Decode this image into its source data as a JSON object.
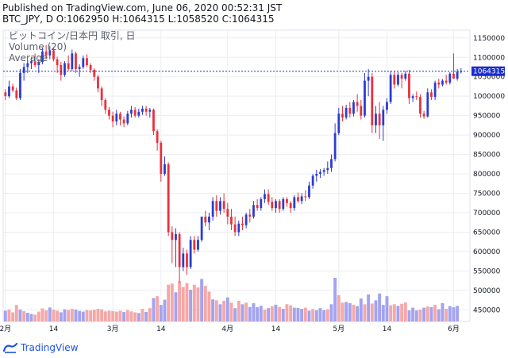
{
  "header": {
    "published": "Published on TradingView.com, June 06, 2020 00:52:31 JST",
    "ohlc": "BTC_JPY, D O:1062950 H:1064315 L:1058520 C:1064315"
  },
  "footer": {
    "brand": "TradingView"
  },
  "colors": {
    "up": "#2c3cd0",
    "down": "#e8313c",
    "vol_up": "#a3a3f0",
    "vol_down": "#f5a8a8",
    "price_line": "#1a2bd0",
    "grid": "#ebedf2"
  },
  "chart_data": {
    "type": "candlestick",
    "title": "ビットコイン/日本円 取引, 日",
    "legend": [
      "Volume (20)",
      "Average"
    ],
    "symbol": "BTC_JPY",
    "interval": "D",
    "last_price": 1064315,
    "last_price_label": "1064315",
    "ylim": [
      420000,
      1170000
    ],
    "y_ticks": [
      450000,
      500000,
      550000,
      600000,
      650000,
      700000,
      750000,
      800000,
      850000,
      900000,
      950000,
      1000000,
      1050000,
      1100000,
      1150000
    ],
    "y_tick_labels": [
      "450000",
      "500000",
      "550000",
      "600000",
      "650000",
      "700000",
      "750000",
      "800000",
      "850000",
      "900000",
      "950000",
      "1000000",
      "1050000",
      "1100000",
      "1150000"
    ],
    "x_ticks": [
      {
        "index": 0,
        "label": "2月"
      },
      {
        "index": 13,
        "label": "14"
      },
      {
        "index": 29,
        "label": "3月"
      },
      {
        "index": 42,
        "label": "14"
      },
      {
        "index": 60,
        "label": "4月"
      },
      {
        "index": 73,
        "label": "14"
      },
      {
        "index": 90,
        "label": "5月"
      },
      {
        "index": 103,
        "label": "14"
      },
      {
        "index": 121,
        "label": "6月"
      }
    ],
    "candles": [
      [
        1010000,
        1018000,
        990000,
        1000000
      ],
      [
        1000000,
        1040000,
        995000,
        1025000
      ],
      [
        1025000,
        1032000,
        1010000,
        1015000
      ],
      [
        1015000,
        1022000,
        990000,
        995000
      ],
      [
        995000,
        1070000,
        990000,
        1060000
      ],
      [
        1060000,
        1085000,
        1040000,
        1075000
      ],
      [
        1075000,
        1092000,
        1060000,
        1085000
      ],
      [
        1085000,
        1100000,
        1070000,
        1090000
      ],
      [
        1090000,
        1110000,
        1075000,
        1080000
      ],
      [
        1080000,
        1095000,
        1060000,
        1088000
      ],
      [
        1088000,
        1125000,
        1082000,
        1115000
      ],
      [
        1115000,
        1132000,
        1095000,
        1105000
      ],
      [
        1105000,
        1130000,
        1095000,
        1118000
      ],
      [
        1118000,
        1125000,
        1090000,
        1095000
      ],
      [
        1095000,
        1102000,
        1060000,
        1080000
      ],
      [
        1080000,
        1088000,
        1040000,
        1055000
      ],
      [
        1055000,
        1090000,
        1050000,
        1085000
      ],
      [
        1085000,
        1105000,
        1065000,
        1070000
      ],
      [
        1070000,
        1120000,
        1065000,
        1110000
      ],
      [
        1110000,
        1115000,
        1060000,
        1070000
      ],
      [
        1070000,
        1082000,
        1050000,
        1075000
      ],
      [
        1075000,
        1105000,
        1070000,
        1098000
      ],
      [
        1098000,
        1108000,
        1075000,
        1080000
      ],
      [
        1080000,
        1085000,
        1060000,
        1068000
      ],
      [
        1068000,
        1072000,
        1040000,
        1050000
      ],
      [
        1050000,
        1055000,
        1010000,
        1020000
      ],
      [
        1020000,
        1025000,
        975000,
        990000
      ],
      [
        990000,
        995000,
        955000,
        965000
      ],
      [
        965000,
        972000,
        940000,
        950000
      ],
      [
        950000,
        960000,
        920000,
        935000
      ],
      [
        935000,
        965000,
        925000,
        955000
      ],
      [
        955000,
        960000,
        925000,
        940000
      ],
      [
        940000,
        948000,
        920000,
        930000
      ],
      [
        930000,
        962000,
        925000,
        955000
      ],
      [
        955000,
        975000,
        945000,
        965000
      ],
      [
        965000,
        972000,
        945000,
        950000
      ],
      [
        950000,
        968000,
        945000,
        960000
      ],
      [
        960000,
        975000,
        952000,
        968000
      ],
      [
        968000,
        975000,
        950000,
        960000
      ],
      [
        960000,
        970000,
        945000,
        965000
      ],
      [
        965000,
        968000,
        900000,
        910000
      ],
      [
        910000,
        915000,
        860000,
        880000
      ],
      [
        880000,
        885000,
        780000,
        800000
      ],
      [
        800000,
        845000,
        795000,
        825000
      ],
      [
        825000,
        830000,
        640000,
        650000
      ],
      [
        650000,
        665000,
        570000,
        630000
      ],
      [
        630000,
        660000,
        560000,
        645000
      ],
      [
        645000,
        650000,
        520000,
        560000
      ],
      [
        560000,
        610000,
        550000,
        595000
      ],
      [
        595000,
        605000,
        540000,
        560000
      ],
      [
        560000,
        640000,
        555000,
        630000
      ],
      [
        630000,
        640000,
        595000,
        605000
      ],
      [
        605000,
        640000,
        600000,
        630000
      ],
      [
        630000,
        690000,
        625000,
        690000
      ],
      [
        690000,
        705000,
        665000,
        675000
      ],
      [
        675000,
        700000,
        655000,
        690000
      ],
      [
        690000,
        740000,
        680000,
        730000
      ],
      [
        730000,
        745000,
        690000,
        705000
      ],
      [
        705000,
        740000,
        695000,
        730000
      ],
      [
        730000,
        750000,
        700000,
        710000
      ],
      [
        710000,
        725000,
        670000,
        690000
      ],
      [
        690000,
        710000,
        655000,
        670000
      ],
      [
        670000,
        690000,
        640000,
        650000
      ],
      [
        650000,
        680000,
        640000,
        672000
      ],
      [
        672000,
        690000,
        655000,
        668000
      ],
      [
        668000,
        700000,
        660000,
        695000
      ],
      [
        695000,
        710000,
        675000,
        690000
      ],
      [
        690000,
        730000,
        685000,
        720000
      ],
      [
        720000,
        735000,
        705000,
        712000
      ],
      [
        712000,
        740000,
        705000,
        735000
      ],
      [
        735000,
        760000,
        725000,
        748000
      ],
      [
        748000,
        760000,
        720000,
        728000
      ],
      [
        728000,
        740000,
        705000,
        712000
      ],
      [
        712000,
        735000,
        700000,
        730000
      ],
      [
        730000,
        735000,
        700000,
        710000
      ],
      [
        710000,
        740000,
        705000,
        735000
      ],
      [
        735000,
        740000,
        715000,
        725000
      ],
      [
        725000,
        730000,
        700000,
        712000
      ],
      [
        712000,
        745000,
        705000,
        740000
      ],
      [
        740000,
        752000,
        725000,
        730000
      ],
      [
        730000,
        750000,
        722000,
        742000
      ],
      [
        742000,
        758000,
        730000,
        740000
      ],
      [
        740000,
        780000,
        735000,
        770000
      ],
      [
        770000,
        800000,
        762000,
        795000
      ],
      [
        795000,
        810000,
        780000,
        800000
      ],
      [
        800000,
        812000,
        790000,
        805000
      ],
      [
        805000,
        815000,
        795000,
        810000
      ],
      [
        810000,
        832000,
        800000,
        815000
      ],
      [
        815000,
        850000,
        805000,
        838000
      ],
      [
        838000,
        930000,
        832000,
        905000
      ],
      [
        905000,
        970000,
        900000,
        955000
      ],
      [
        955000,
        975000,
        935000,
        945000
      ],
      [
        945000,
        978000,
        940000,
        970000
      ],
      [
        970000,
        985000,
        945000,
        955000
      ],
      [
        955000,
        990000,
        948000,
        985000
      ],
      [
        985000,
        1005000,
        960000,
        975000
      ],
      [
        975000,
        990000,
        940000,
        950000
      ],
      [
        950000,
        1060000,
        945000,
        1040000
      ],
      [
        1040000,
        1070000,
        1000000,
        1050000
      ],
      [
        1050000,
        1060000,
        905000,
        925000
      ],
      [
        925000,
        975000,
        905000,
        955000
      ],
      [
        955000,
        985000,
        890000,
        925000
      ],
      [
        925000,
        975000,
        885000,
        965000
      ],
      [
        965000,
        995000,
        955000,
        985000
      ],
      [
        985000,
        1065000,
        980000,
        1055000
      ],
      [
        1055000,
        1065000,
        1020000,
        1030000
      ],
      [
        1030000,
        1062000,
        1025000,
        1055000
      ],
      [
        1055000,
        1060000,
        1020000,
        1045000
      ],
      [
        1045000,
        1065000,
        1040000,
        1058000
      ],
      [
        1058000,
        1068000,
        980000,
        995000
      ],
      [
        995000,
        1005000,
        985000,
        1000000
      ],
      [
        1000000,
        1012000,
        990000,
        998000
      ],
      [
        998000,
        1005000,
        945000,
        955000
      ],
      [
        955000,
        962000,
        942000,
        948000
      ],
      [
        948000,
        1020000,
        945000,
        1010000
      ],
      [
        1010000,
        1018000,
        990000,
        998000
      ],
      [
        998000,
        1040000,
        990000,
        1035000
      ],
      [
        1035000,
        1045000,
        1020000,
        1030000
      ],
      [
        1030000,
        1044000,
        1025000,
        1040000
      ],
      [
        1040000,
        1055000,
        1030000,
        1035000
      ],
      [
        1035000,
        1062000,
        1030000,
        1058000
      ],
      [
        1058000,
        1110000,
        1050000,
        1045000
      ],
      [
        1045000,
        1070000,
        1040000,
        1062950
      ],
      [
        1062950,
        1072000,
        1058520,
        1064315
      ]
    ],
    "volumes": [
      [
        47000,
        1
      ],
      [
        52000,
        0
      ],
      [
        40000,
        0
      ],
      [
        72000,
        0
      ],
      [
        52000,
        1
      ],
      [
        45000,
        0
      ],
      [
        38000,
        1
      ],
      [
        33000,
        1
      ],
      [
        30000,
        0
      ],
      [
        43000,
        0
      ],
      [
        57000,
        0
      ],
      [
        48000,
        0
      ],
      [
        61000,
        1
      ],
      [
        52000,
        0
      ],
      [
        47000,
        0
      ],
      [
        40000,
        1
      ],
      [
        53000,
        1
      ],
      [
        50000,
        0
      ],
      [
        55000,
        0
      ],
      [
        52000,
        1
      ],
      [
        46000,
        1
      ],
      [
        43000,
        1
      ],
      [
        50000,
        0
      ],
      [
        48000,
        0
      ],
      [
        51000,
        0
      ],
      [
        55000,
        0
      ],
      [
        53000,
        0
      ],
      [
        44000,
        0
      ],
      [
        47000,
        0
      ],
      [
        45000,
        0
      ],
      [
        43000,
        0
      ],
      [
        47000,
        0
      ],
      [
        41000,
        1
      ],
      [
        50000,
        0
      ],
      [
        44000,
        0
      ],
      [
        40000,
        0
      ],
      [
        37000,
        1
      ],
      [
        55000,
        0
      ],
      [
        42000,
        1
      ],
      [
        58000,
        0
      ],
      [
        102000,
        1
      ],
      [
        110000,
        0
      ],
      [
        72000,
        1
      ],
      [
        95000,
        1
      ],
      [
        160000,
        0
      ],
      [
        165000,
        0
      ],
      [
        127000,
        1
      ],
      [
        175000,
        0
      ],
      [
        150000,
        0
      ],
      [
        167000,
        0
      ],
      [
        138000,
        1
      ],
      [
        160000,
        0
      ],
      [
        148000,
        0
      ],
      [
        185000,
        1
      ],
      [
        155000,
        0
      ],
      [
        130000,
        0
      ],
      [
        96000,
        1
      ],
      [
        92000,
        0
      ],
      [
        75000,
        1
      ],
      [
        90000,
        0
      ],
      [
        105000,
        1
      ],
      [
        82000,
        0
      ],
      [
        58000,
        1
      ],
      [
        90000,
        0
      ],
      [
        75000,
        1
      ],
      [
        82000,
        0
      ],
      [
        63000,
        1
      ],
      [
        80000,
        1
      ],
      [
        62000,
        1
      ],
      [
        68000,
        1
      ],
      [
        52000,
        0
      ],
      [
        58000,
        1
      ],
      [
        66000,
        0
      ],
      [
        73000,
        1
      ],
      [
        63000,
        0
      ],
      [
        55000,
        1
      ],
      [
        75000,
        0
      ],
      [
        70000,
        0
      ],
      [
        60000,
        1
      ],
      [
        59000,
        1
      ],
      [
        55000,
        1
      ],
      [
        60000,
        0
      ],
      [
        47000,
        1
      ],
      [
        54000,
        0
      ],
      [
        49000,
        1
      ],
      [
        58000,
        1
      ],
      [
        49000,
        1
      ],
      [
        53000,
        0
      ],
      [
        75000,
        1
      ],
      [
        190000,
        1
      ],
      [
        115000,
        0
      ],
      [
        82000,
        0
      ],
      [
        85000,
        1
      ],
      [
        80000,
        1
      ],
      [
        73000,
        0
      ],
      [
        67000,
        1
      ],
      [
        100000,
        1
      ],
      [
        75000,
        0
      ],
      [
        118000,
        1
      ],
      [
        78000,
        0
      ],
      [
        92000,
        1
      ],
      [
        122000,
        1
      ],
      [
        72000,
        1
      ],
      [
        110000,
        1
      ],
      [
        70000,
        0
      ],
      [
        75000,
        0
      ],
      [
        68000,
        1
      ],
      [
        77000,
        0
      ],
      [
        83000,
        0
      ],
      [
        48000,
        1
      ],
      [
        60000,
        1
      ],
      [
        48000,
        1
      ],
      [
        52000,
        0
      ],
      [
        60000,
        1
      ],
      [
        65000,
        0
      ],
      [
        62000,
        1
      ],
      [
        72000,
        0
      ],
      [
        53000,
        1
      ],
      [
        80000,
        1
      ],
      [
        55000,
        0
      ],
      [
        67000,
        1
      ],
      [
        62000,
        1
      ],
      [
        68000,
        1
      ]
    ]
  }
}
